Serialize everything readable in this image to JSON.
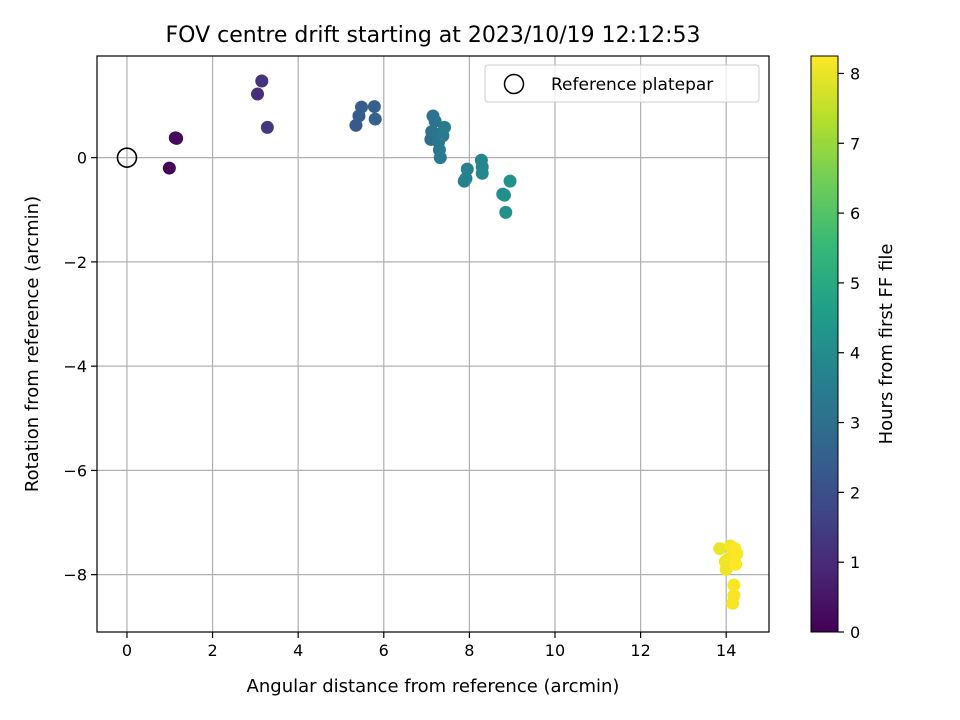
{
  "chart_data": {
    "type": "scatter",
    "title": "FOV centre drift starting at 2023/10/19 12:12:53",
    "xlabel": "Angular distance from reference (arcmin)",
    "ylabel": "Rotation from reference (arcmin)",
    "xlim": [
      -0.7,
      15.0
    ],
    "ylim": [
      -9.1,
      1.95
    ],
    "xticks": [
      0,
      2,
      4,
      6,
      8,
      10,
      12,
      14
    ],
    "yticks": [
      -8,
      -6,
      -4,
      -2,
      0
    ],
    "xtick_labels": [
      "0",
      "2",
      "4",
      "6",
      "8",
      "10",
      "12",
      "14"
    ],
    "ytick_labels": [
      "−8",
      "−6",
      "−4",
      "−2",
      "0"
    ],
    "grid": true,
    "legend": {
      "placement": "top-right",
      "entries": [
        "Reference platepar"
      ]
    },
    "colorbar": {
      "label": "Hours from first FF file",
      "range": [
        0,
        8.25
      ],
      "ticks": [
        0,
        1,
        2,
        3,
        4,
        5,
        6,
        7,
        8
      ],
      "tick_labels": [
        "0",
        "1",
        "2",
        "3",
        "4",
        "5",
        "6",
        "7",
        "8"
      ],
      "colormap": "viridis"
    },
    "reference_point": {
      "x": 0,
      "y": 0
    },
    "points": [
      {
        "x": 0.99,
        "y": -0.2,
        "t": 0.05
      },
      {
        "x": 1.13,
        "y": 0.38,
        "t": 0.15
      },
      {
        "x": 1.16,
        "y": 0.37,
        "t": 0.2
      },
      {
        "x": 3.05,
        "y": 1.22,
        "t": 1.1
      },
      {
        "x": 3.15,
        "y": 1.47,
        "t": 1.2
      },
      {
        "x": 3.28,
        "y": 0.58,
        "t": 1.3
      },
      {
        "x": 5.35,
        "y": 0.62,
        "t": 2.3
      },
      {
        "x": 5.42,
        "y": 0.8,
        "t": 2.35
      },
      {
        "x": 5.48,
        "y": 0.97,
        "t": 2.4
      },
      {
        "x": 5.78,
        "y": 0.98,
        "t": 2.5
      },
      {
        "x": 5.8,
        "y": 0.74,
        "t": 2.55
      },
      {
        "x": 7.1,
        "y": 0.35,
        "t": 3.0
      },
      {
        "x": 7.12,
        "y": 0.5,
        "t": 3.05
      },
      {
        "x": 7.15,
        "y": 0.8,
        "t": 3.1
      },
      {
        "x": 7.2,
        "y": 0.7,
        "t": 3.15
      },
      {
        "x": 7.25,
        "y": 0.45,
        "t": 3.2
      },
      {
        "x": 7.28,
        "y": 0.3,
        "t": 3.25
      },
      {
        "x": 7.3,
        "y": 0.15,
        "t": 3.3
      },
      {
        "x": 7.32,
        "y": 0.0,
        "t": 3.35
      },
      {
        "x": 7.38,
        "y": 0.42,
        "t": 3.4
      },
      {
        "x": 7.42,
        "y": 0.58,
        "t": 3.45
      },
      {
        "x": 7.88,
        "y": -0.45,
        "t": 3.6
      },
      {
        "x": 7.92,
        "y": -0.4,
        "t": 3.65
      },
      {
        "x": 7.95,
        "y": -0.22,
        "t": 3.7
      },
      {
        "x": 8.28,
        "y": -0.05,
        "t": 3.75
      },
      {
        "x": 8.3,
        "y": -0.18,
        "t": 3.8
      },
      {
        "x": 8.3,
        "y": -0.3,
        "t": 3.85
      },
      {
        "x": 8.78,
        "y": -0.7,
        "t": 4.05
      },
      {
        "x": 8.82,
        "y": -0.72,
        "t": 4.1
      },
      {
        "x": 8.85,
        "y": -1.05,
        "t": 4.15
      },
      {
        "x": 8.95,
        "y": -0.45,
        "t": 4.2
      },
      {
        "x": 13.85,
        "y": -7.5,
        "t": 8.0
      },
      {
        "x": 13.98,
        "y": -7.75,
        "t": 8.05
      },
      {
        "x": 14.0,
        "y": -7.9,
        "t": 8.08
      },
      {
        "x": 14.05,
        "y": -7.7,
        "t": 8.1
      },
      {
        "x": 14.1,
        "y": -7.45,
        "t": 8.12
      },
      {
        "x": 14.15,
        "y": -7.65,
        "t": 8.14
      },
      {
        "x": 14.15,
        "y": -8.55,
        "t": 8.16
      },
      {
        "x": 14.18,
        "y": -8.4,
        "t": 8.18
      },
      {
        "x": 14.18,
        "y": -8.2,
        "t": 8.2
      },
      {
        "x": 14.2,
        "y": -7.5,
        "t": 8.22
      },
      {
        "x": 14.22,
        "y": -7.8,
        "t": 8.23
      },
      {
        "x": 14.25,
        "y": -7.6,
        "t": 8.24
      }
    ],
    "colors": {
      "grid": "#b0b0b0",
      "axis": "#000000",
      "reference_marker": "#000000"
    }
  }
}
